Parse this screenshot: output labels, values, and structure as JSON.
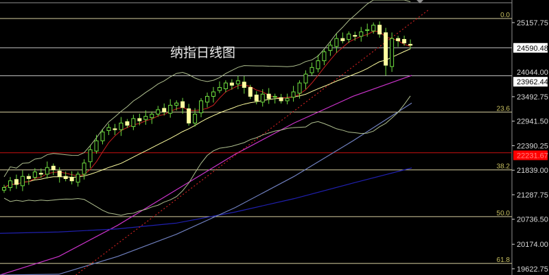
{
  "chart_data": {
    "type": "candlestick",
    "title": "纳指日线图",
    "ylim": [
      19483,
      25666
    ],
    "y_ticks": [
      "25157.75",
      "23492.75",
      "22941.50",
      "22390.25",
      "21839.00",
      "21287.75",
      "20736.50",
      "20174.00",
      "19622.75"
    ],
    "y_tick_values": [
      25157.75,
      23492.75,
      22941.5,
      22390.25,
      21839.0,
      21287.75,
      20736.5,
      20174.0,
      19622.75
    ],
    "price_labels": [
      {
        "text": "24590.48",
        "value": 24590.48,
        "bg": "#ffffff",
        "fg": "#000000"
      },
      {
        "text": "24044.00",
        "value": 24044.0,
        "bg": "#000000",
        "fg": "#d8d8d8"
      },
      {
        "text": "23962.44",
        "value": 23962.44,
        "bg": "#ffffff",
        "fg": "#000000"
      },
      {
        "text": "22231.67",
        "value": 22231.67,
        "bg": "#ff0000",
        "fg": "#ff8080"
      }
    ],
    "fibonacci": {
      "high": 25250,
      "low": 16340,
      "levels": [
        {
          "label": "0.0",
          "ratio": 0
        },
        {
          "label": "23.6",
          "ratio": 0.236
        },
        {
          "label": "38.2",
          "ratio": 0.382
        },
        {
          "label": "50.0",
          "ratio": 0.5
        },
        {
          "label": "61.8",
          "ratio": 0.618
        }
      ]
    },
    "horizontal_lines": [
      {
        "value": 24590.48,
        "color": "#c0c0c0"
      },
      {
        "value": 23962.44,
        "color": "#c0c0c0"
      },
      {
        "value": 22231.67,
        "color": "#cc1010"
      }
    ],
    "closes": [
      21450,
      21600,
      21520,
      21700,
      21650,
      21800,
      21750,
      21900,
      21850,
      21700,
      21650,
      21600,
      21750,
      22000,
      22300,
      22500,
      22700,
      22800,
      22750,
      22900,
      22850,
      23000,
      22950,
      23050,
      23100,
      23200,
      23150,
      23300,
      23350,
      23250,
      22900,
      23100,
      23400,
      23500,
      23600,
      23700,
      23800,
      23750,
      23850,
      23700,
      23500,
      23400,
      23550,
      23450,
      23500,
      23400,
      23450,
      23600,
      23800,
      24000,
      24150,
      24300,
      24500,
      24650,
      24800,
      24750,
      24900,
      24850,
      24950,
      25000,
      25100,
      24900,
      24200,
      24800,
      24750,
      24700,
      24650
    ],
    "long_ma_series": [
      {
        "color": "#cc33cc",
        "values": [
          19450,
          19900,
          20600,
          21400,
          22200,
          22900,
          23500,
          23970
        ]
      },
      {
        "color": "#2020b0",
        "values": [
          20420,
          20450,
          20520,
          20650,
          20900,
          21200,
          21550,
          21890
        ]
      },
      {
        "color": "#7080c0",
        "values": [
          19400,
          19500,
          19900,
          20400,
          21000,
          21700,
          22500,
          23350
        ]
      }
    ],
    "trendline": {
      "color": "#cc2020",
      "start": 18200,
      "end": 25450
    },
    "colors": {
      "bull": "#ffffa0",
      "bear": "#a0ff60",
      "wick": "#70e040",
      "ma_fast": "#cc2020",
      "ma_mid": "#ffffa0",
      "bands": "#b0c090"
    }
  }
}
